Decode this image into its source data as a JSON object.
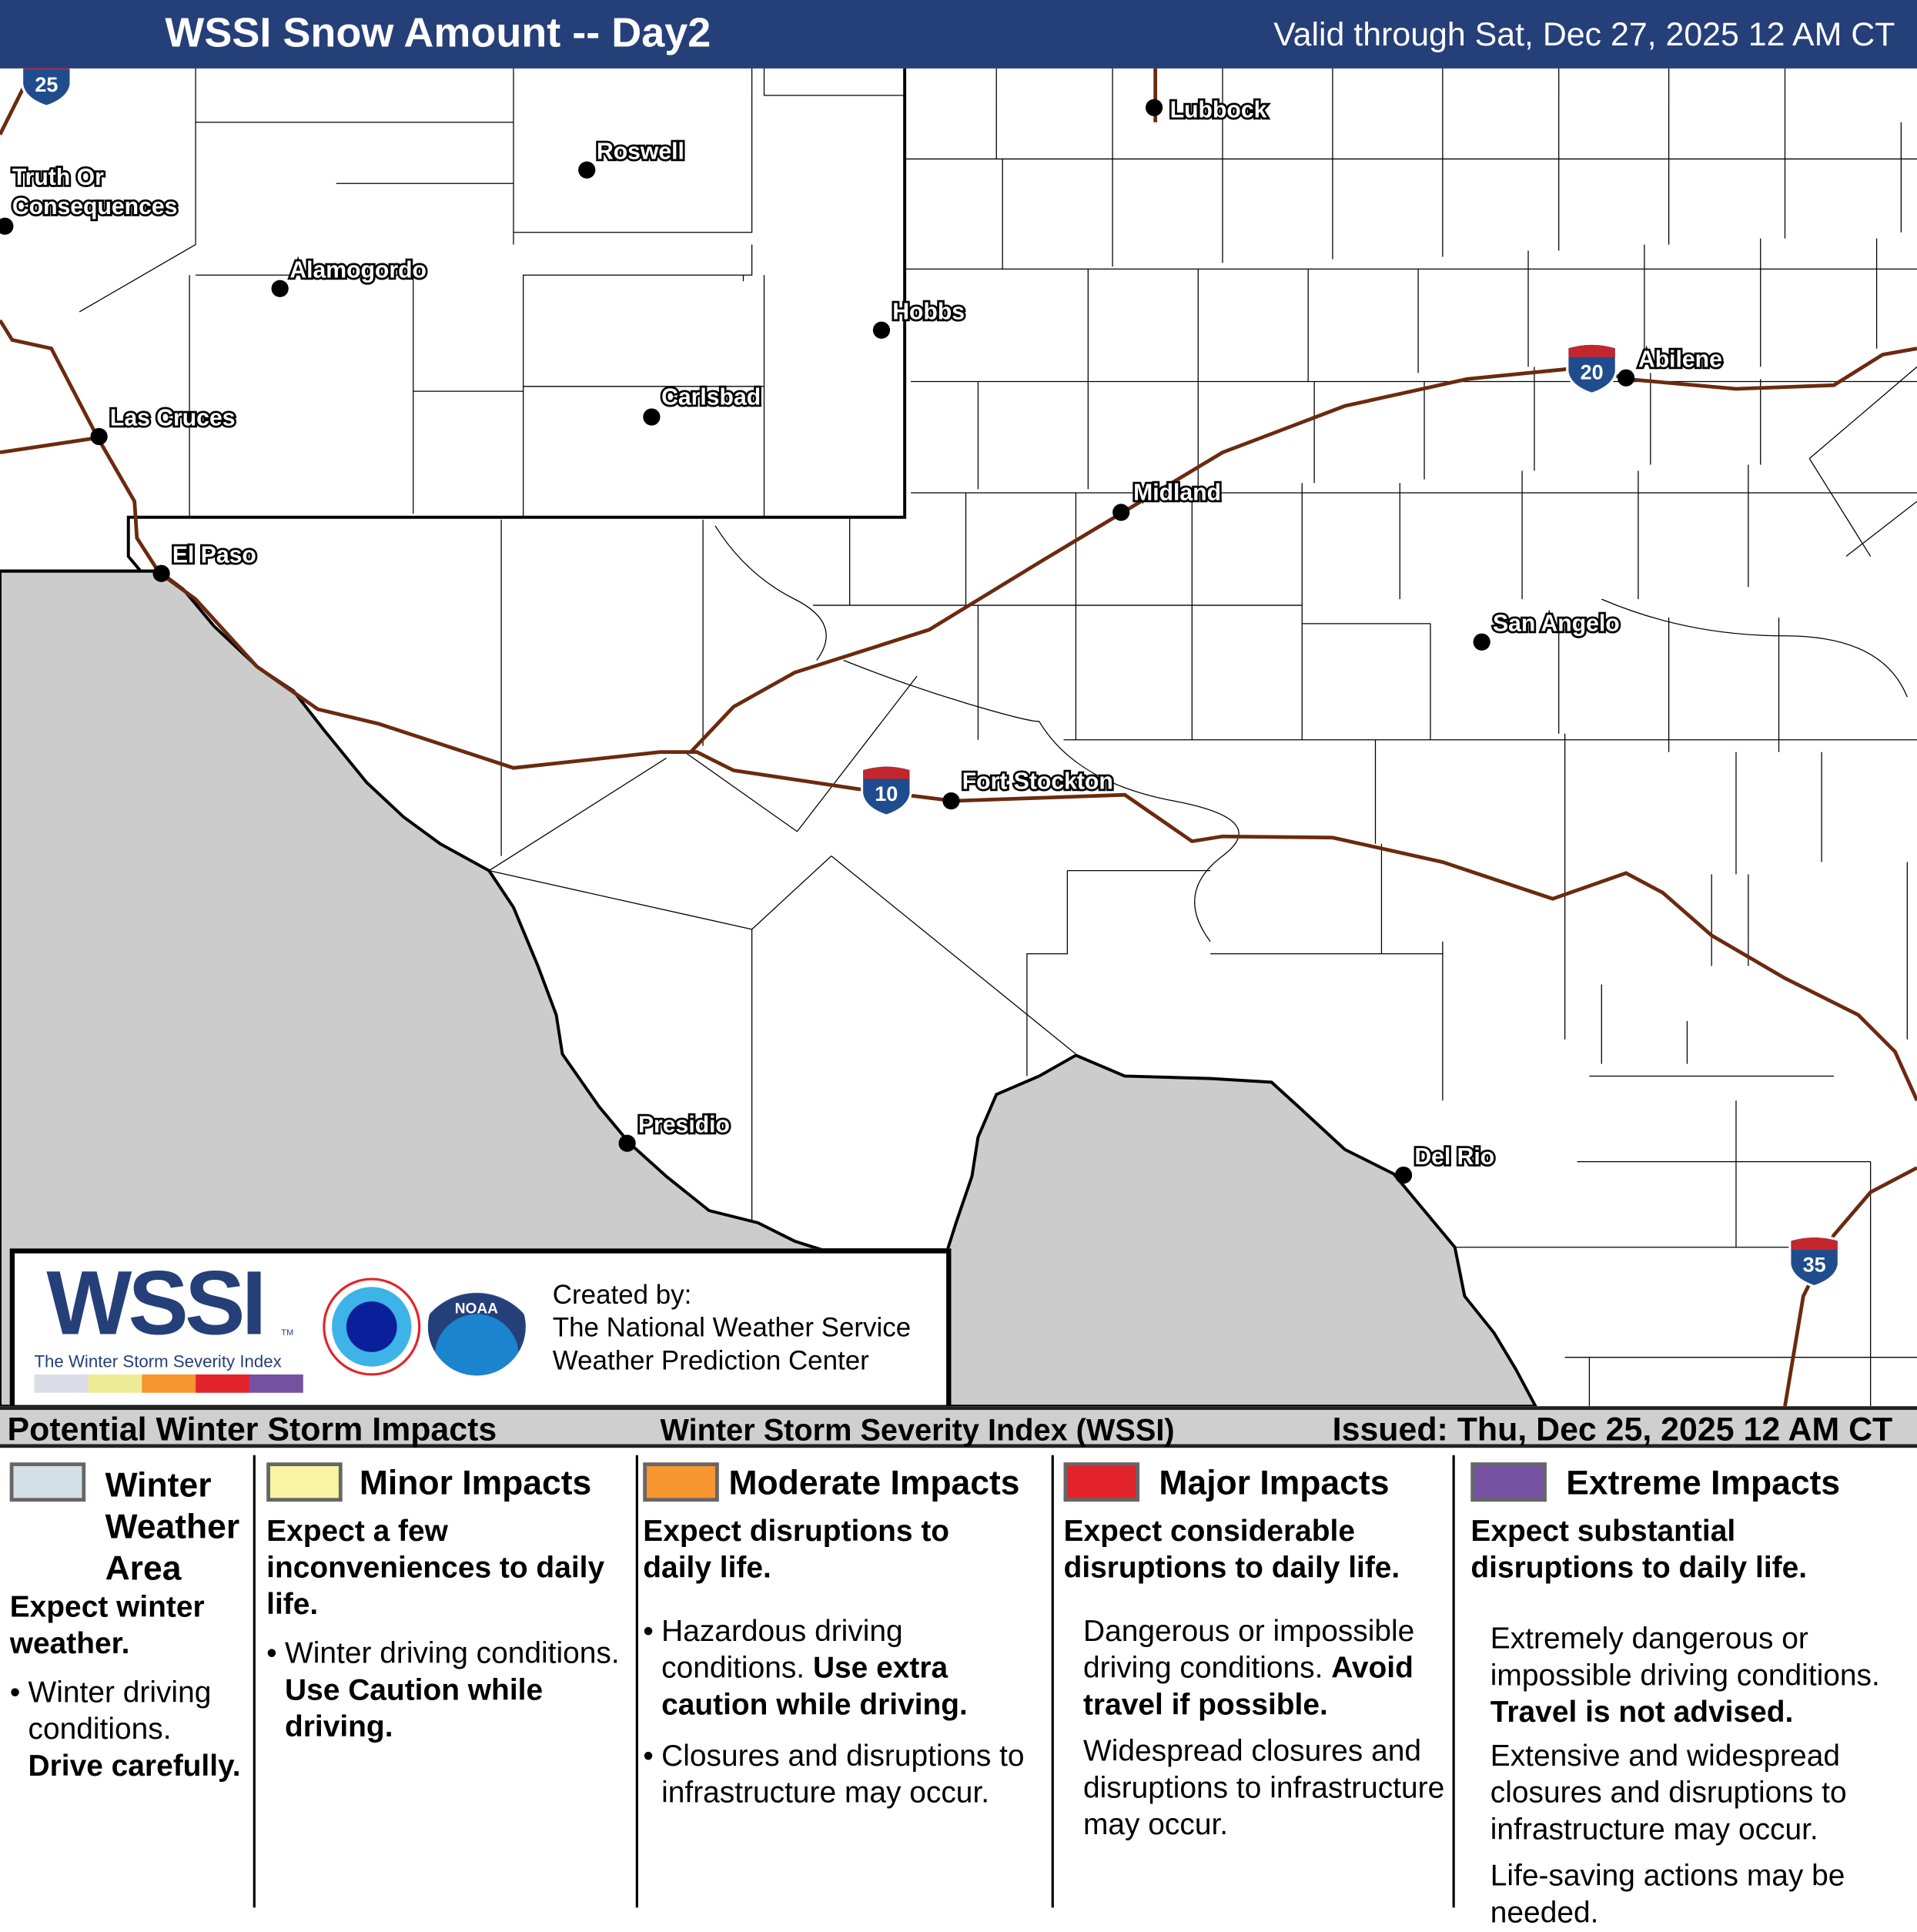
{
  "header": {
    "title": "WSSI Snow Amount -- Day2",
    "valid": "Valid through Sat, Dec 27, 2025 12 AM CT"
  },
  "colors": {
    "header_bg": "#253f79",
    "mexico": "#cccccc",
    "interstate": "#6b2a0e",
    "winter": "#d3e0e8",
    "minor": "#f8f4a1",
    "moderate": "#f7962f",
    "major": "#e3232b",
    "extreme": "#7751a1"
  },
  "map": {
    "shields": [
      "25",
      "20",
      "10",
      "35"
    ],
    "cities": [
      {
        "name": "Lubbock"
      },
      {
        "name": "Roswell"
      },
      {
        "name": "Truth Or"
      },
      {
        "name": "Consequences"
      },
      {
        "name": "Alamogordo"
      },
      {
        "name": "Hobbs"
      },
      {
        "name": "Carlsbad"
      },
      {
        "name": "Las Cruces"
      },
      {
        "name": "Abilene"
      },
      {
        "name": "Midland"
      },
      {
        "name": "El Paso"
      },
      {
        "name": "San Angelo"
      },
      {
        "name": "Fort Stockton"
      },
      {
        "name": "Presidio"
      },
      {
        "name": "Del Rio"
      }
    ]
  },
  "logo": {
    "wssi": "WSSI",
    "tm": "TM",
    "subtitle": "The Winter Storm Severity Index",
    "nws": "NATIONAL WEATHER SERVICE",
    "noaa": "NOAA",
    "created": [
      "Created by:",
      "The National Weather Service",
      "Weather Prediction Center"
    ]
  },
  "legend_bar": {
    "left": "Potential Winter Storm Impacts",
    "center": "Winter Storm Severity Index (WSSI)",
    "right": "Issued: Thu, Dec 25, 2025 12 AM CT"
  },
  "legend": {
    "winter": {
      "title": [
        "Winter",
        "Weather",
        "Area"
      ],
      "lead": "Expect winter weather.",
      "b1": "Winter driving conditions.",
      "b1b": "Drive carefully."
    },
    "minor": {
      "title": "Minor Impacts",
      "lead": "Expect a few inconveniences to daily life.",
      "b1": "Winter driving conditions.",
      "b1b": "Use Caution while driving."
    },
    "moderate": {
      "title": "Moderate Impacts",
      "lead": "Expect disruptions to daily life.",
      "b1": "Hazardous driving conditions.",
      "b1b": "Use extra caution while driving.",
      "b2": "Closures and disruptions to infrastructure may occur."
    },
    "major": {
      "title": "Major Impacts",
      "lead": "Expect considerable disruptions to daily life.",
      "p1": "Dangerous or impossible driving conditions.",
      "p1b": "Avoid travel if possible.",
      "p2": "Widespread closures and disruptions to infrastructure may occur."
    },
    "extreme": {
      "title": "Extreme Impacts",
      "lead": "Expect substantial disruptions to daily life.",
      "p1": "Extremely dangerous or impossible driving conditions.",
      "p1b": "Travel is not advised.",
      "p2": "Extensive and widespread closures and disruptions to infrastructure may occur.",
      "p3": "Life-saving actions may be needed."
    }
  }
}
